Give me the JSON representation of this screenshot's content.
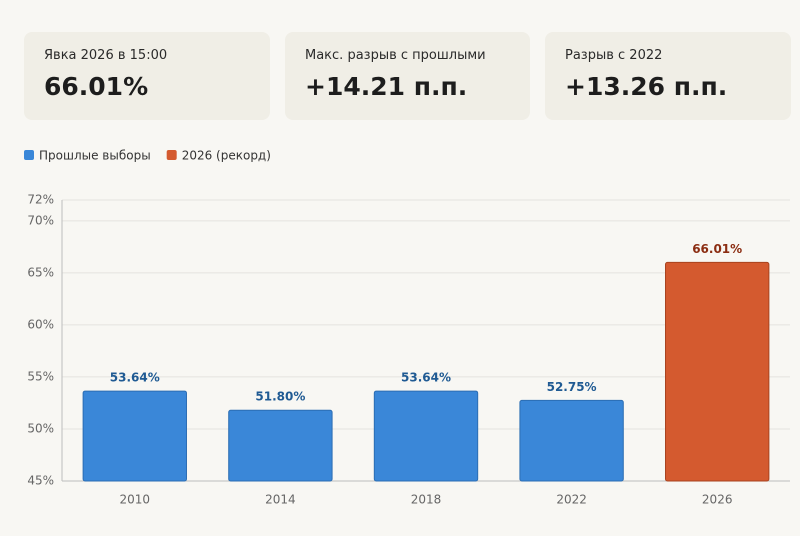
{
  "cards": [
    {
      "label": "Явка 2026 в 15:00",
      "value": "66.01%"
    },
    {
      "label": "Макс. разрыв с прошлыми",
      "value": "+14.21 п.п."
    },
    {
      "label": "Разрыв с 2022",
      "value": "+13.26 п.п."
    }
  ],
  "chart_data": {
    "type": "bar",
    "categories": [
      "2010",
      "2014",
      "2018",
      "2022",
      "2026"
    ],
    "series": [
      {
        "name": "Прошлые выборы",
        "color": "#3a87d8",
        "values": [
          53.64,
          51.8,
          53.64,
          52.75,
          null
        ],
        "value_labels": [
          "53.64%",
          "51.80%",
          "53.64%",
          "52.75%",
          null
        ]
      },
      {
        "name": "2026 (рекорд)",
        "color": "#d45a2f",
        "values": [
          null,
          null,
          null,
          null,
          66.01
        ],
        "value_labels": [
          null,
          null,
          null,
          null,
          "66.01%"
        ]
      }
    ],
    "ylim": [
      45,
      72
    ],
    "yticks": [
      {
        "value": 45,
        "label": "45%"
      },
      {
        "value": 50,
        "label": "50%"
      },
      {
        "value": 55,
        "label": "55%"
      },
      {
        "value": 60,
        "label": "60%"
      },
      {
        "value": 65,
        "label": "65%"
      },
      {
        "value": 70,
        "label": "70%"
      },
      {
        "value": 72,
        "label": "72%"
      }
    ],
    "grid": true
  }
}
